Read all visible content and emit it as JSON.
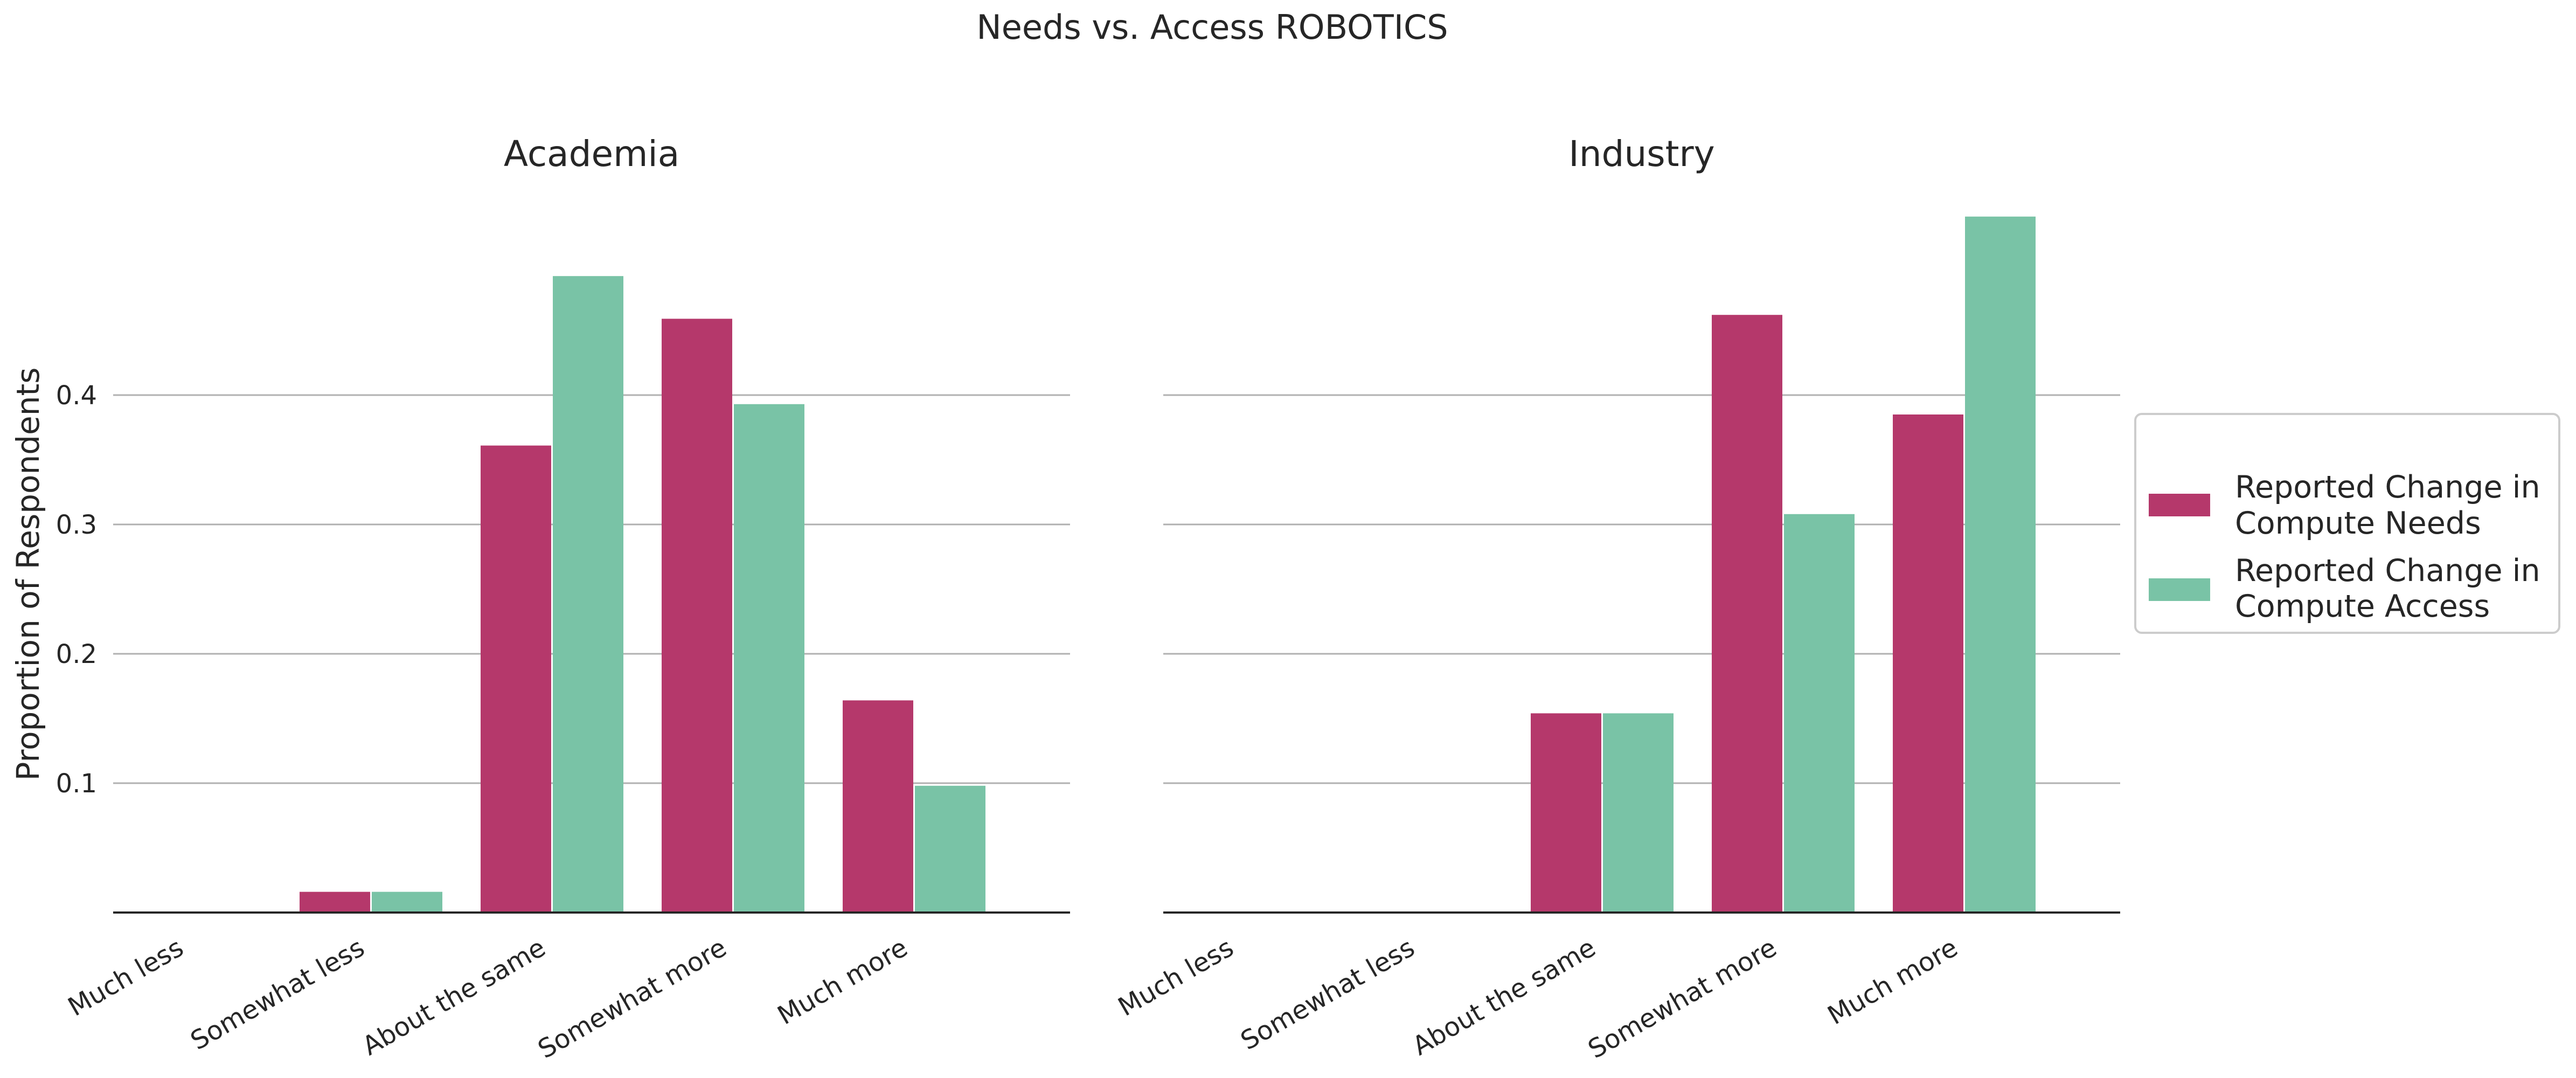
{
  "chart_data": {
    "title": "Needs vs. Access ROBOTICS",
    "ylabel": "Proportion of Respondents",
    "ylim": [
      0,
      0.545
    ],
    "yticks": [
      0.1,
      0.2,
      0.3,
      0.4
    ],
    "ytick_labels": [
      "0.1",
      "0.2",
      "0.3",
      "0.4"
    ],
    "grid": "horizontal",
    "legend_position": "right",
    "colors": {
      "needs": "#b5386b",
      "access": "#79c3a6"
    },
    "legend": [
      {
        "line1": "Reported Change in",
        "line2": "Compute Needs"
      },
      {
        "line1": "Reported Change in",
        "line2": "Compute Access"
      }
    ],
    "panels": [
      {
        "type": "bar",
        "title": "Academia",
        "categories": [
          "Much less",
          "Somewhat less",
          "About the same",
          "Somewhat more",
          "Much more"
        ],
        "series": [
          {
            "name": "Reported Change in Compute Needs",
            "values": [
              0.0,
              0.016,
              0.361,
              0.459,
              0.164
            ]
          },
          {
            "name": "Reported Change in Compute Access",
            "values": [
              0.0,
              0.016,
              0.492,
              0.393,
              0.098
            ]
          }
        ]
      },
      {
        "type": "bar",
        "title": "Industry",
        "categories": [
          "Much less",
          "Somewhat less",
          "About the same",
          "Somewhat more",
          "Much more"
        ],
        "series": [
          {
            "name": "Reported Change in Compute Needs",
            "values": [
              0.0,
              0.0,
              0.154,
              0.462,
              0.385
            ]
          },
          {
            "name": "Reported Change in Compute Access",
            "values": [
              0.0,
              0.0,
              0.154,
              0.308,
              0.538
            ]
          }
        ]
      }
    ]
  }
}
